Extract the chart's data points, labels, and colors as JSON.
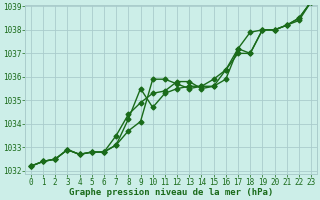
{
  "xlabel": "Graphe pression niveau de la mer (hPa)",
  "hours": [
    0,
    1,
    2,
    3,
    4,
    5,
    6,
    7,
    8,
    9,
    10,
    11,
    12,
    13,
    14,
    15,
    16,
    17,
    18,
    19,
    20,
    21,
    22,
    23
  ],
  "line1": [
    1032.2,
    1032.4,
    1032.5,
    1032.9,
    1032.7,
    1032.8,
    1032.8,
    1033.1,
    1033.7,
    1034.1,
    1035.9,
    1035.9,
    1035.7,
    1035.5,
    1035.6,
    1035.9,
    1036.3,
    1037.2,
    1037.9,
    1038.0,
    1038.0,
    1038.2,
    1038.5,
    1039.2
  ],
  "line2": [
    1032.2,
    1032.4,
    1032.5,
    1032.9,
    1032.7,
    1032.8,
    1032.8,
    1033.5,
    1034.4,
    1034.9,
    1035.3,
    1035.4,
    1035.8,
    1035.8,
    1035.5,
    1035.6,
    1035.9,
    1037.2,
    1037.0,
    1038.0,
    1038.0,
    1038.2,
    1038.4,
    1039.2
  ],
  "line3": [
    1032.2,
    1032.4,
    1032.5,
    1032.9,
    1032.7,
    1032.8,
    1032.8,
    1033.1,
    1034.2,
    1035.5,
    1034.7,
    1035.3,
    1035.5,
    1035.6,
    1035.6,
    1035.6,
    1036.3,
    1037.0,
    1037.0,
    1038.0,
    1038.0,
    1038.2,
    1038.5,
    1039.2
  ],
  "bg_color": "#cceee8",
  "line_color": "#1a6b1a",
  "grid_color": "#aacccc",
  "tick_label_color": "#1a6b1a",
  "ylim_min": 1032,
  "ylim_max": 1039,
  "yticks": [
    1032,
    1033,
    1034,
    1035,
    1036,
    1037,
    1038,
    1039
  ],
  "marker": "D",
  "markersize": 2.5,
  "linewidth": 1.0,
  "tick_fontsize": 5.5,
  "xlabel_fontsize": 6.5
}
